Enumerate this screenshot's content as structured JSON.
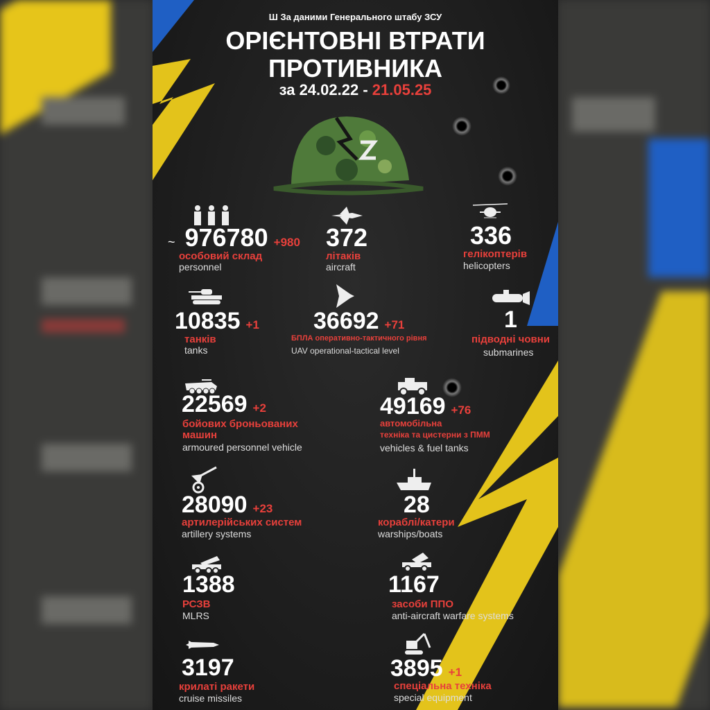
{
  "colors": {
    "accent_red": "#e8403b",
    "flag_blue": "#1f5fc4",
    "flag_yellow": "#f2d01c",
    "background": "#1a1a1a"
  },
  "header": {
    "source": "За даними Генерального штабу ЗСУ",
    "source_icon": "trident-icon",
    "title_line1": "ОРІЄНТОВНІ ВТРАТИ",
    "title_line2": "ПРОТИВНИКА",
    "date_prefix": "за 24.02.22 -",
    "date_end": "21.05.25"
  },
  "stats": [
    {
      "key": "personnel",
      "icon": "soldiers-icon",
      "prefix": "~",
      "value": "976780",
      "increase": "+980",
      "ua": "особовий склад",
      "en": "personnel"
    },
    {
      "key": "aircraft",
      "icon": "jet-icon",
      "value": "372",
      "ua": "літаків",
      "en": "aircraft"
    },
    {
      "key": "helicopters",
      "icon": "helicopter-icon",
      "value": "336",
      "ua": "гелікоптерів",
      "en": "helicopters"
    },
    {
      "key": "tanks",
      "icon": "tank-icon",
      "value": "10835",
      "increase": "+1",
      "ua": "танків",
      "en": "tanks"
    },
    {
      "key": "uav",
      "icon": "drone-icon",
      "value": "36692",
      "increase": "+71",
      "ua": "БПЛА оперативно-тактичного рівня",
      "en": "UAV operational-tactical level"
    },
    {
      "key": "submarines",
      "icon": "submarine-icon",
      "value": "1",
      "ua": "підводні човни",
      "en": "submarines"
    },
    {
      "key": "apv",
      "icon": "apc-icon",
      "value": "22569",
      "increase": "+2",
      "ua_line1": "бойових броньованих",
      "ua_line2": "машин",
      "en": "armoured personnel vehicle"
    },
    {
      "key": "vehicles",
      "icon": "truck-icon",
      "value": "49169",
      "increase": "+76",
      "ua_line1": "автомобільна",
      "ua_line2": "техніка  та цистерни з ПММ",
      "en": "vehicles & fuel tanks"
    },
    {
      "key": "artillery",
      "icon": "artillery-icon",
      "value": "28090",
      "increase": "+23",
      "ua": "артилерійських систем",
      "en": "artillery systems"
    },
    {
      "key": "warships",
      "icon": "warship-icon",
      "value": "28",
      "ua": "кораблі/катери",
      "en": "warships/boats"
    },
    {
      "key": "mlrs",
      "icon": "mlrs-icon",
      "value": "1388",
      "ua": "РСЗВ",
      "en": "MLRS"
    },
    {
      "key": "air_defense",
      "icon": "air-defense-icon",
      "value": "1167",
      "ua": "засоби ППО",
      "en": "anti-aircraft warfare systems"
    },
    {
      "key": "cruise_missiles",
      "icon": "missile-icon",
      "value": "3197",
      "ua": "крилаті ракети",
      "en": "cruise missiles"
    },
    {
      "key": "special_equipment",
      "icon": "excavator-icon",
      "value": "3895",
      "increase": "+1",
      "ua": "спеціальна техніка",
      "en": "special equipment"
    }
  ]
}
